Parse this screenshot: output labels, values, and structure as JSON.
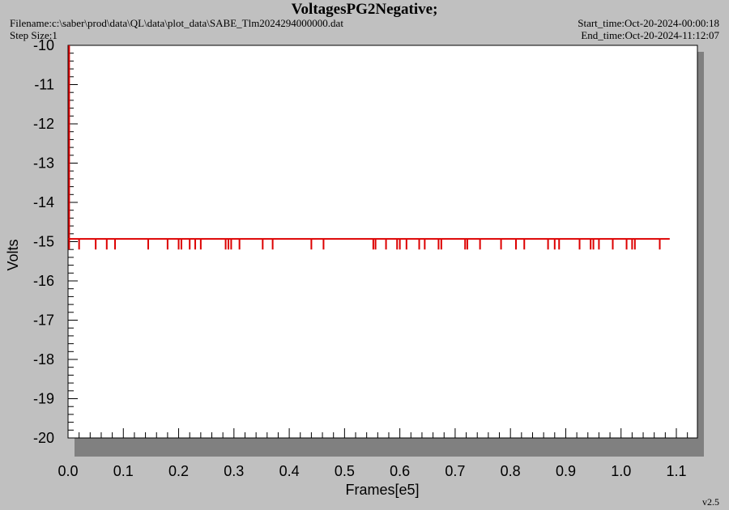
{
  "header": {
    "title": "VoltagesPG2Negative;",
    "filename": "Filename:c:\\saber\\prod\\data\\QL\\data\\plot_data\\SABE_Tlm2024294000000.dat",
    "step_size": "Step Size:1",
    "start_time": "Start_time:Oct-20-2024-00:00:18",
    "end_time": "End_time:Oct-20-2024-11:12:07",
    "version": "v2.5"
  },
  "colors": {
    "background": "#c0c0c0",
    "plot_area": "#ffffff",
    "shadow": "#808080",
    "series": "#dd0000"
  },
  "chart_data": {
    "type": "line",
    "title": "VoltagesPG2Negative;",
    "xlabel": "Frames[e5]",
    "ylabel": "Volts",
    "xlim": [
      0,
      1.14
    ],
    "ylim": [
      -20,
      -10
    ],
    "x_ticks": [
      "0.0",
      "0.1",
      "0.2",
      "0.3",
      "0.4",
      "0.5",
      "0.6",
      "0.7",
      "0.8",
      "0.9",
      "1.0",
      "1.1"
    ],
    "x_tick_values": [
      0,
      0.1,
      0.2,
      0.3,
      0.4,
      0.5,
      0.6,
      0.7,
      0.8,
      0.9,
      1.0,
      1.1
    ],
    "y_ticks": [
      "-10",
      "-11",
      "-12",
      "-13",
      "-14",
      "-15",
      "-16",
      "-17",
      "-18",
      "-19",
      "-20"
    ],
    "y_tick_values": [
      -10,
      -11,
      -12,
      -13,
      -14,
      -15,
      -16,
      -17,
      -18,
      -19,
      -20
    ],
    "grid": false,
    "series": [
      {
        "baseline": -14.93,
        "x_range": [
          0,
          1.088
        ],
        "start_spike": {
          "x": 0.002,
          "y_from": -10,
          "y_to": -15.2
        },
        "dip_value": -15.2,
        "dip_x": [
          0.02,
          0.05,
          0.07,
          0.085,
          0.145,
          0.18,
          0.2,
          0.205,
          0.22,
          0.23,
          0.24,
          0.285,
          0.29,
          0.295,
          0.31,
          0.352,
          0.37,
          0.44,
          0.462,
          0.552,
          0.556,
          0.575,
          0.595,
          0.6,
          0.612,
          0.635,
          0.645,
          0.67,
          0.675,
          0.718,
          0.722,
          0.745,
          0.783,
          0.81,
          0.825,
          0.868,
          0.88,
          0.888,
          0.925,
          0.945,
          0.95,
          0.96,
          0.985,
          1.01,
          1.02,
          1.025,
          1.07
        ]
      }
    ]
  }
}
